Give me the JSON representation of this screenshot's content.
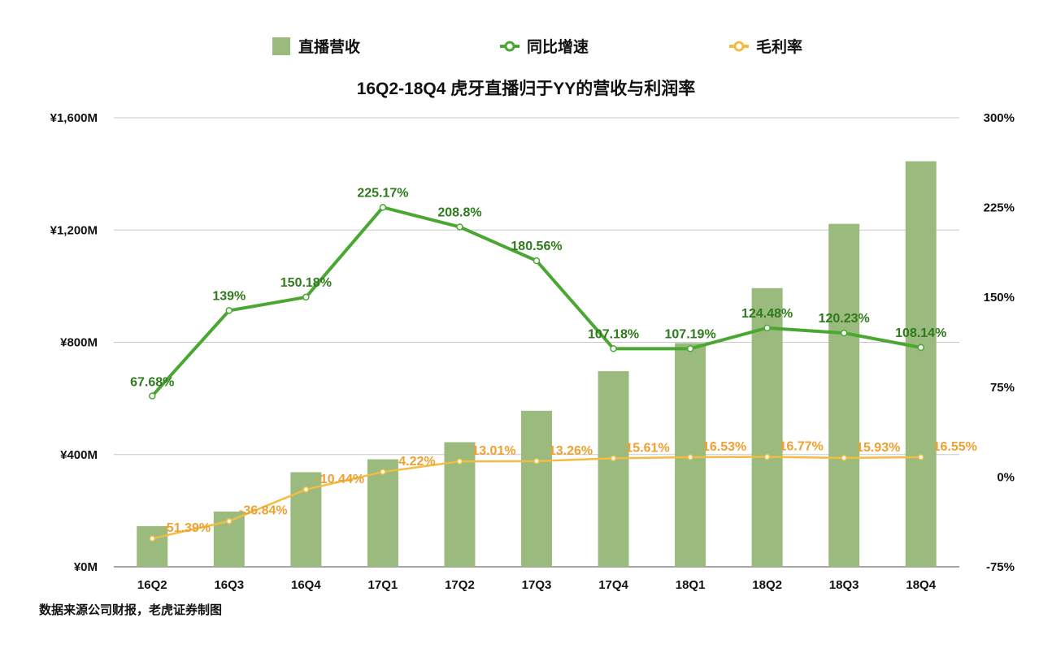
{
  "chart_data": {
    "type": "bar+line",
    "title": "16Q2-18Q4 虎牙直播归于YY的营收与利润率",
    "categories": [
      "16Q2",
      "16Q3",
      "16Q4",
      "17Q1",
      "17Q2",
      "17Q3",
      "17Q4",
      "18Q1",
      "18Q2",
      "18Q3",
      "18Q4"
    ],
    "legend": [
      "直播营收",
      "同比增速",
      "毛利率"
    ],
    "left_axis": {
      "min": 0,
      "max": 1600,
      "ticks": [
        0,
        400,
        800,
        1200,
        1600
      ],
      "tick_labels": [
        "¥0M",
        "¥400M",
        "¥800M",
        "¥1,200M",
        "¥1,600M"
      ]
    },
    "right_axis": {
      "min": -75,
      "max": 300,
      "ticks": [
        -75,
        0,
        75,
        150,
        225,
        300
      ],
      "tick_labels": [
        "-75%",
        "0%",
        "75%",
        "150%",
        "225%",
        "300%"
      ]
    },
    "series": [
      {
        "name": "直播营收",
        "type": "bar",
        "axis": "left",
        "values": [
          145,
          197,
          337,
          383,
          444,
          556,
          697,
          797,
          993,
          1222,
          1445
        ]
      },
      {
        "name": "同比增速",
        "type": "line",
        "axis": "right",
        "values": [
          67.68,
          139,
          150.18,
          225.17,
          208.8,
          180.56,
          107.18,
          107.19,
          124.48,
          120.23,
          108.14
        ],
        "labels": [
          "67.68%",
          "139%",
          "150.18%",
          "225.17%",
          "208.8%",
          "180.56%",
          "107.18%",
          "107.19%",
          "124.48%",
          "120.23%",
          "108.14%"
        ]
      },
      {
        "name": "毛利率",
        "type": "line",
        "axis": "right",
        "values": [
          -51.39,
          -36.84,
          -10.44,
          4.22,
          13.01,
          13.26,
          15.61,
          16.53,
          16.77,
          15.93,
          16.55
        ],
        "labels": [
          "-51.39%",
          "-36.84%",
          "-10.44%",
          "4.22%",
          "13.01%",
          "13.26%",
          "15.61%",
          "16.53%",
          "16.77%",
          "15.93%",
          "16.55%"
        ]
      }
    ],
    "colors": {
      "bar": "#9bba7e",
      "growth": "#4aa832",
      "growth_label": "#2f7a1c",
      "margin": "#f2bd42",
      "margin_label": "#f0a030"
    }
  },
  "source": "数据来源公司财报，老虎证券制图"
}
